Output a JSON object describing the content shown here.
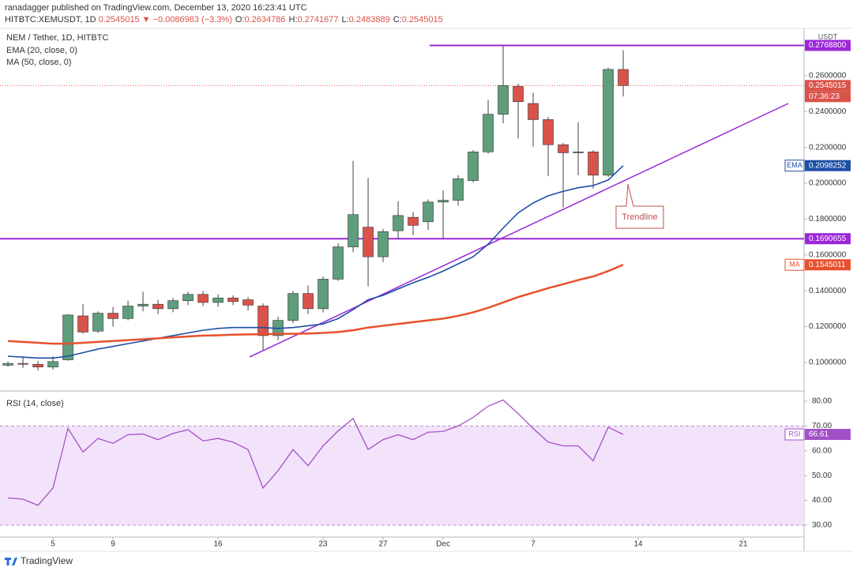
{
  "header": {
    "published": "ranadagger published on TradingView.com, December 13, 2020 16:23:41 UTC",
    "symbol": "HITBTC:XEMUSDT, 1D",
    "change": "0.2545015 ▼ −0.0086983 (−3.3%)",
    "ohlc": [
      {
        "label": "O:",
        "value": "0.2634786"
      },
      {
        "label": "H:",
        "value": "0.2741677"
      },
      {
        "label": "L:",
        "value": "0.2483889"
      },
      {
        "label": "C:",
        "value": "0.2545015"
      }
    ]
  },
  "footer": "TradingView",
  "chart_data": [
    {
      "type": "candlestick",
      "title": "NEM / Tether, 1D, HITBTC",
      "currency": "USDT",
      "up_color": "#5e9e7c",
      "down_color": "#d9534a",
      "open": [
        0.0985,
        0.0995,
        0.099,
        0.0975,
        0.1015,
        0.126,
        0.1175,
        0.1275,
        0.1245,
        0.1315,
        0.1325,
        0.13,
        0.1345,
        0.138,
        0.1335,
        0.136,
        0.135,
        0.1315,
        0.115,
        0.1235,
        0.1385,
        0.13,
        0.1465,
        0.1645,
        0.1755,
        0.159,
        0.1735,
        0.181,
        0.1785,
        0.1895,
        0.1905,
        0.2015,
        0.2175,
        0.2385,
        0.254,
        0.2445,
        0.2355,
        0.2215,
        0.217,
        0.2175,
        0.2045,
        0.2634786
      ],
      "high": [
        0.1005,
        0.1035,
        0.101,
        0.1035,
        0.127,
        0.1325,
        0.1285,
        0.131,
        0.1345,
        0.1395,
        0.135,
        0.136,
        0.1395,
        0.14,
        0.138,
        0.1375,
        0.1365,
        0.133,
        0.1255,
        0.14,
        0.143,
        0.148,
        0.1665,
        0.2125,
        0.203,
        0.1745,
        0.19,
        0.184,
        0.191,
        0.196,
        0.2045,
        0.2185,
        0.2465,
        0.2765,
        0.2555,
        0.2505,
        0.237,
        0.2225,
        0.234,
        0.2185,
        0.2645,
        0.2741677
      ],
      "low": [
        0.0975,
        0.097,
        0.0955,
        0.096,
        0.101,
        0.116,
        0.1165,
        0.12,
        0.1235,
        0.1285,
        0.127,
        0.128,
        0.132,
        0.1315,
        0.131,
        0.132,
        0.129,
        0.107,
        0.1125,
        0.122,
        0.127,
        0.128,
        0.1455,
        0.1615,
        0.1425,
        0.156,
        0.169,
        0.171,
        0.174,
        0.169,
        0.1875,
        0.2005,
        0.2165,
        0.2335,
        0.225,
        0.2205,
        0.204,
        0.1865,
        0.2045,
        0.197,
        0.2035,
        0.2483889
      ],
      "close": [
        0.0995,
        0.099,
        0.0975,
        0.1005,
        0.1265,
        0.117,
        0.1275,
        0.1245,
        0.1315,
        0.1325,
        0.13,
        0.1345,
        0.138,
        0.1335,
        0.136,
        0.134,
        0.132,
        0.115,
        0.1235,
        0.1385,
        0.13,
        0.1465,
        0.1645,
        0.1825,
        0.159,
        0.173,
        0.182,
        0.1765,
        0.1895,
        0.1905,
        0.2025,
        0.2175,
        0.2385,
        0.2545,
        0.2455,
        0.2355,
        0.2215,
        0.217,
        0.2175,
        0.2045,
        0.2635,
        0.2545015
      ],
      "series": [
        {
          "name": "EMA (20, close, 0)",
          "tag": "EMA",
          "last_label": "0.2098252",
          "color": "#1e4fa6",
          "values": [
            0.1035,
            0.103,
            0.1025,
            0.1025,
            0.1035,
            0.1055,
            0.1075,
            0.109,
            0.1105,
            0.112,
            0.1135,
            0.115,
            0.1165,
            0.118,
            0.119,
            0.1195,
            0.1195,
            0.1195,
            0.119,
            0.1195,
            0.1205,
            0.1215,
            0.1245,
            0.1295,
            0.135,
            0.1375,
            0.141,
            0.1445,
            0.1475,
            0.151,
            0.155,
            0.159,
            0.166,
            0.175,
            0.1835,
            0.189,
            0.193,
            0.1955,
            0.1975,
            0.1987,
            0.2018,
            0.2098252
          ]
        },
        {
          "name": "MA (50, close, 0)",
          "tag": "MA",
          "last_label": "0.1545011",
          "color": "#e8502d",
          "values": [
            0.112,
            0.1115,
            0.111,
            0.1105,
            0.1105,
            0.111,
            0.1115,
            0.112,
            0.1125,
            0.113,
            0.1135,
            0.114,
            0.1145,
            0.115,
            0.1152,
            0.1155,
            0.1157,
            0.1158,
            0.116,
            0.116,
            0.1162,
            0.1165,
            0.117,
            0.118,
            0.1195,
            0.1205,
            0.1215,
            0.1225,
            0.1235,
            0.1245,
            0.126,
            0.128,
            0.1305,
            0.1335,
            0.1365,
            0.139,
            0.1415,
            0.1437,
            0.146,
            0.148,
            0.151,
            0.1545011
          ]
        }
      ],
      "last": {
        "value": 0.2545015,
        "label": "0.2545015",
        "countdown": "07:36:23"
      },
      "hlines": [
        {
          "value": 0.27688,
          "label": "0.2768800",
          "x_start": 28.1
        },
        {
          "value": 0.1690655,
          "label": "0.1690655"
        }
      ],
      "line_color": "#9c27d8",
      "trendline": {
        "label": "Trendline",
        "x": [
          16.1,
          52
        ],
        "y": [
          0.10308,
          0.2445
        ]
      },
      "xlim": [
        -0.53,
        53.05
      ],
      "ylim": [
        0.085,
        0.2846
      ],
      "yticks": [
        {
          "value": 0.1,
          "label": "0.1000000"
        },
        {
          "value": 0.12,
          "label": "0.1200000"
        },
        {
          "value": 0.14,
          "label": "0.1400000"
        },
        {
          "value": 0.16,
          "label": "0.1600000"
        },
        {
          "value": 0.18,
          "label": "0.1800000"
        },
        {
          "value": 0.2,
          "label": "0.2000000"
        },
        {
          "value": 0.22,
          "label": "0.2200000"
        },
        {
          "value": 0.24,
          "label": "0.2400000"
        },
        {
          "value": 0.26,
          "label": "0.2600000"
        }
      ],
      "xticks": [
        {
          "value": 3,
          "label": "5"
        },
        {
          "value": 7,
          "label": "9"
        },
        {
          "value": 14,
          "label": "16"
        },
        {
          "value": 21,
          "label": "23"
        },
        {
          "value": 25,
          "label": "27"
        },
        {
          "value": 29,
          "label": "Dec"
        },
        {
          "value": 35,
          "label": "7"
        },
        {
          "value": 42,
          "label": "14"
        },
        {
          "value": 49,
          "label": "21"
        }
      ],
      "grid": false
    },
    {
      "type": "line",
      "title": "RSI (14, close)",
      "series": [
        {
          "name": "RSI",
          "last_label": "66.61",
          "color": "#a350c8",
          "values": [
            41,
            40.5,
            38,
            45,
            69,
            59.5,
            65,
            63,
            66.5,
            66.8,
            64.5,
            67,
            68.5,
            64,
            65,
            63.5,
            60.5,
            45,
            52,
            60.5,
            54,
            62,
            68,
            73,
            60.5,
            64.5,
            66.5,
            64.5,
            67.5,
            67.8,
            70,
            73.5,
            78,
            80.5,
            75,
            69,
            63.5,
            62,
            62,
            56,
            69.5,
            66.61
          ]
        }
      ],
      "band": [
        30,
        70
      ],
      "band_color": "#f3e3fa",
      "xlim": [
        -0.53,
        53.05
      ],
      "ylim": [
        25.2,
        83.5
      ],
      "yticks": [
        {
          "value": 30,
          "label": "30.00"
        },
        {
          "value": 40,
          "label": "40.00"
        },
        {
          "value": 50,
          "label": "50.00"
        },
        {
          "value": 60,
          "label": "60.00"
        },
        {
          "value": 70,
          "label": "70.00"
        },
        {
          "value": 80,
          "label": "80.00"
        }
      ],
      "grid": false
    }
  ]
}
